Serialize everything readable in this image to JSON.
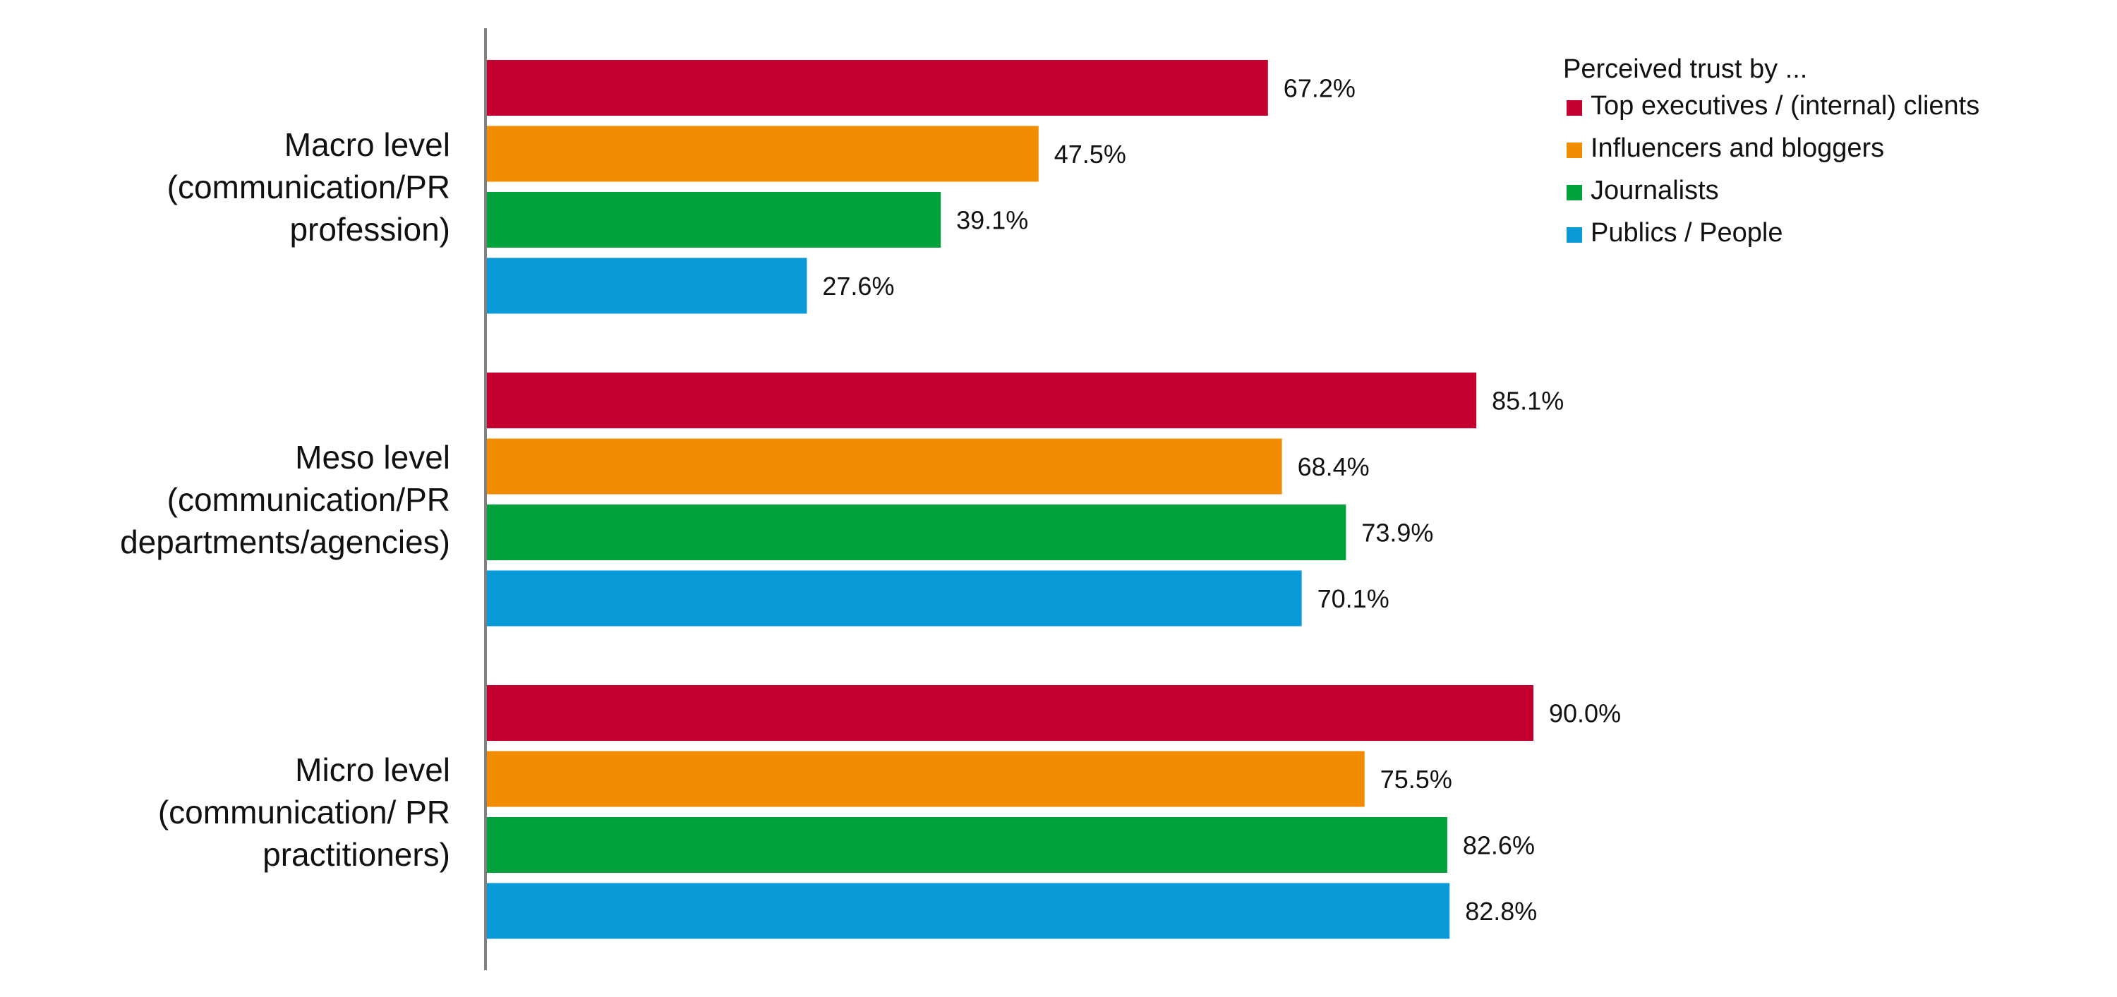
{
  "chart_data": {
    "type": "bar",
    "orientation": "horizontal",
    "categories": [
      [
        "Macro level",
        "(communication/PR",
        "profession)"
      ],
      [
        "Meso level",
        "(communication/PR",
        "departments/agencies)"
      ],
      [
        "Micro level",
        "(communication/ PR",
        "practitioners)"
      ]
    ],
    "series": [
      {
        "name": "Top executives / (internal) clients",
        "color": "#C3002F",
        "values": [
          67.2,
          85.1,
          90.0
        ],
        "labels": [
          "67.2%",
          "85.1%",
          "90.0%"
        ]
      },
      {
        "name": "Influencers and bloggers",
        "color": "#F28C00",
        "values": [
          47.5,
          68.4,
          75.5
        ],
        "labels": [
          "47.5%",
          "68.4%",
          "75.5%"
        ]
      },
      {
        "name": "Journalists",
        "color": "#00A23C",
        "values": [
          39.1,
          73.9,
          82.6
        ],
        "labels": [
          "39.1%",
          "73.9%",
          "82.6%"
        ]
      },
      {
        "name": "Publics / People",
        "color": "#0A9AD7",
        "values": [
          27.6,
          70.1,
          82.8
        ],
        "labels": [
          "27.6%",
          "70.1%",
          "82.8%"
        ]
      }
    ],
    "xlim": [
      0,
      100
    ],
    "grid": false,
    "legend": {
      "title": "Perceived trust by ...",
      "position": "top-right"
    },
    "axis_color": "#808080"
  }
}
